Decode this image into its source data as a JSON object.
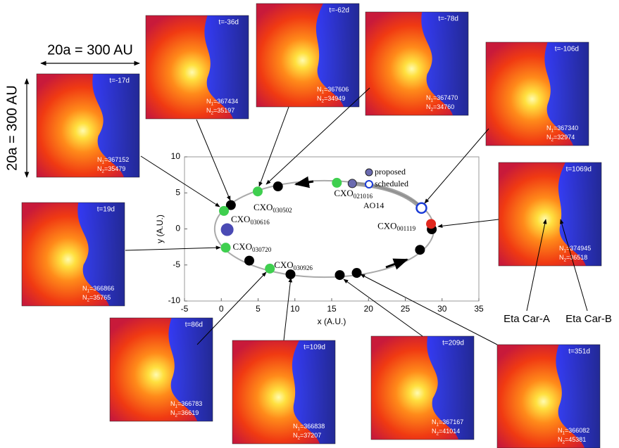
{
  "chart_data": {
    "type": "scatter",
    "xlabel": "x (A.U.)",
    "ylabel": "y (A.U.)",
    "xlim": [
      -5,
      35
    ],
    "xticks": [
      -5,
      0,
      5,
      10,
      15,
      20,
      25,
      30,
      35
    ],
    "ylim": [
      -10,
      10
    ],
    "yticks": [
      -10,
      -5,
      0,
      5,
      10
    ],
    "legend": "upper-right",
    "orbit": {
      "center_x": 14,
      "center_y": 0,
      "semi_major": 14.9,
      "semi_minor": 6.7
    },
    "annotation": "AO14",
    "series": [
      {
        "color": "#000000",
        "x": [
          1.3,
          7.7,
          28.6,
          27,
          18.4,
          16.1,
          9.4,
          3.8
        ],
        "y": [
          3.3,
          5.9,
          -0.05,
          -2.9,
          -6.1,
          -6.4,
          -6.3,
          -4.4
        ]
      },
      {
        "color": "#3fcf4f",
        "x": [
          0.36,
          4.95,
          15.7,
          0.6,
          6.6
        ],
        "y": [
          2.5,
          5.2,
          6.4,
          -2.6,
          -5.5
        ],
        "labels": [
          {
            "text": "CXO",
            "sub": "030616"
          },
          {
            "text": "CXO",
            "sub": "030502"
          },
          {
            "text": "CXO",
            "sub": "021016"
          },
          {
            "text": "CXO",
            "sub": "030720"
          },
          {
            "text": "CXO",
            "sub": "030926"
          }
        ]
      },
      {
        "color": "#e0281e",
        "x": [
          28.5
        ],
        "y": [
          0.7
        ],
        "labels": [
          {
            "text": "CXO",
            "sub": "001119"
          }
        ]
      },
      {
        "name": "proposed",
        "color": "#6a6ab0",
        "x": [
          17.8
        ],
        "y": [
          6.3
        ]
      },
      {
        "name": "scheduled",
        "color": "#1a3bd6",
        "marker": "open",
        "x": [
          27.2
        ],
        "y": [
          2.9
        ]
      },
      {
        "color": "#4a4ab4",
        "x": [
          0.8
        ],
        "y": [
          -0.1
        ]
      }
    ]
  },
  "scale_labels": {
    "horizontal": "20a = 300 AU",
    "vertical": "20a = 300 AU"
  },
  "stars": [
    "Eta Car-A",
    "Eta Car-B"
  ],
  "panels": [
    {
      "t": "t=-17d",
      "n1": {
        "text": "N",
        "sub": "1",
        "rest": "=367152"
      },
      "n2": {
        "text": "N",
        "sub": "2",
        "rest": "=35479"
      }
    },
    {
      "t": "t=-36d",
      "n1": {
        "text": "N",
        "sub": "1",
        "rest": "=367434"
      },
      "n2": {
        "text": "N",
        "sub": "2",
        "rest": "=35197"
      }
    },
    {
      "t": "t=-62d",
      "n1": {
        "text": "N",
        "sub": "1",
        "rest": "=367606"
      },
      "n2": {
        "text": "N",
        "sub": "2",
        "rest": "=34949"
      }
    },
    {
      "t": "t=-78d",
      "n1": {
        "text": "N",
        "sub": "1",
        "rest": "=367470"
      },
      "n2": {
        "text": "N",
        "sub": "2",
        "rest": "=34760"
      }
    },
    {
      "t": "t=-106d",
      "n1": {
        "text": "N",
        "sub": "1",
        "rest": "=367340"
      },
      "n2": {
        "text": "N",
        "sub": "2",
        "rest": "=32974"
      }
    },
    {
      "t": "t=1069d",
      "n1": {
        "text": "N",
        "sub": "1",
        "rest": "=374945"
      },
      "n2": {
        "text": "N",
        "sub": "2",
        "rest": "=36518"
      }
    },
    {
      "t": "t=19d",
      "n1": {
        "text": "N",
        "sub": "1",
        "rest": "=366866"
      },
      "n2": {
        "text": "N",
        "sub": "2",
        "rest": "=35765"
      }
    },
    {
      "t": "t=86d",
      "n1": {
        "text": "N",
        "sub": "1",
        "rest": "=366783"
      },
      "n2": {
        "text": "N",
        "sub": "2",
        "rest": "=36619"
      }
    },
    {
      "t": "t=109d",
      "n1": {
        "text": "N",
        "sub": "1",
        "rest": "=366838"
      },
      "n2": {
        "text": "N",
        "sub": "2",
        "rest": "=37207"
      }
    },
    {
      "t": "t=209d",
      "n1": {
        "text": "N",
        "sub": "1",
        "rest": "=367167"
      },
      "n2": {
        "text": "N",
        "sub": "2",
        "rest": "=41014"
      }
    },
    {
      "t": "t=351d",
      "n1": {
        "text": "N",
        "sub": "1",
        "rest": "=366082"
      },
      "n2": {
        "text": "N",
        "sub": "2",
        "rest": "=45381"
      }
    }
  ]
}
